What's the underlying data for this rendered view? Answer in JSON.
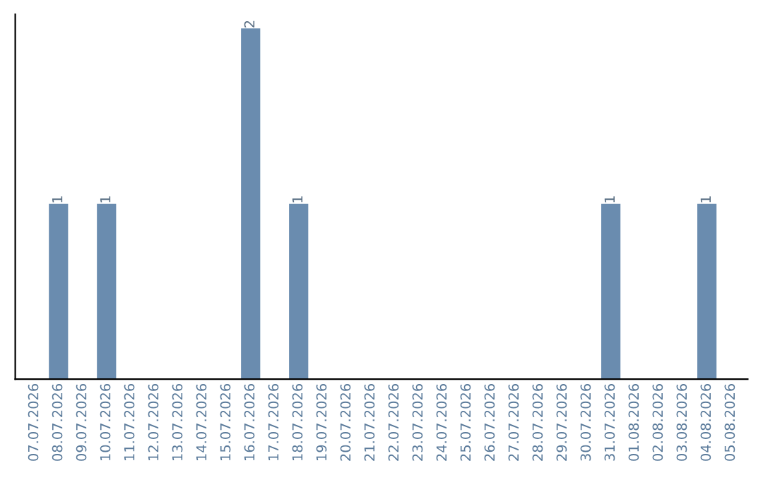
{
  "chart_data": {
    "type": "bar",
    "categories": [
      "07.07.2026",
      "08.07.2026",
      "09.07.2026",
      "10.07.2026",
      "11.07.2026",
      "12.07.2026",
      "13.07.2026",
      "14.07.2026",
      "15.07.2026",
      "16.07.2026",
      "17.07.2026",
      "18.07.2026",
      "19.07.2026",
      "20.07.2026",
      "21.07.2026",
      "22.07.2026",
      "23.07.2026",
      "24.07.2026",
      "25.07.2026",
      "26.07.2026",
      "27.07.2026",
      "28.07.2026",
      "29.07.2026",
      "30.07.2026",
      "31.07.2026",
      "01.08.2026",
      "02.08.2026",
      "03.08.2026",
      "04.08.2026",
      "05.08.2026"
    ],
    "values": [
      0,
      1,
      0,
      1,
      0,
      0,
      0,
      0,
      0,
      2,
      0,
      1,
      0,
      0,
      0,
      0,
      0,
      0,
      0,
      0,
      0,
      0,
      0,
      0,
      1,
      0,
      0,
      0,
      1,
      0
    ],
    "value_labels": [
      null,
      "1",
      null,
      "1",
      null,
      null,
      null,
      null,
      null,
      "2",
      null,
      "1",
      null,
      null,
      null,
      null,
      null,
      null,
      null,
      null,
      null,
      null,
      null,
      null,
      "1",
      null,
      null,
      null,
      "1",
      null
    ],
    "color": "#6a8caf",
    "tick_labels": "x",
    "grid": false,
    "legend": false
  }
}
